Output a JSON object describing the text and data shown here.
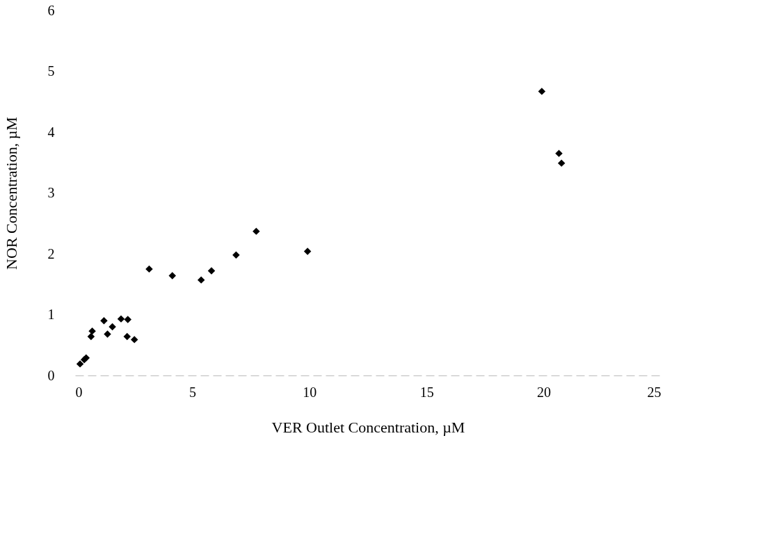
{
  "chart_data": {
    "type": "scatter",
    "xlabel": "VER Outlet Concentration, µM",
    "ylabel": "NOR Concentration, µM",
    "x": [
      0.21,
      0.39,
      0.47,
      0.68,
      0.73,
      1.23,
      1.38,
      1.59,
      1.96,
      2.25,
      2.22,
      2.53,
      3.16,
      4.15,
      5.38,
      5.82,
      6.87,
      7.73,
      9.92,
      19.92,
      20.65,
      20.76
    ],
    "series": [
      {
        "color": "#000000",
        "values": [
          0.19,
          0.26,
          0.29,
          0.64,
          0.73,
          0.9,
          0.68,
          0.8,
          0.93,
          0.92,
          0.64,
          0.59,
          1.75,
          1.64,
          1.57,
          1.72,
          1.98,
          2.37,
          2.04,
          4.67,
          3.65,
          3.49
        ]
      }
    ],
    "xlim": [
      0,
      25
    ],
    "xticks": [
      0,
      5,
      10,
      15,
      20,
      25
    ],
    "ylim": [
      0,
      6
    ],
    "yticks": [
      0,
      1,
      2,
      3,
      4,
      5,
      6
    ],
    "marker": "diamond",
    "grid": false
  }
}
